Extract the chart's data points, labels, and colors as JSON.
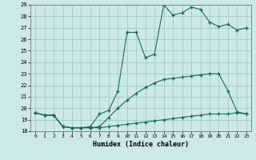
{
  "xlabel": "Humidex (Indice chaleur)",
  "bg_color": "#cce9e4",
  "grid_color": "#9dccc5",
  "line_color": "#1a6b5a",
  "xlim": [
    -0.5,
    23.5
  ],
  "ylim": [
    18,
    29
  ],
  "line1_x": [
    0,
    1,
    2,
    3,
    4,
    5,
    6,
    7,
    8,
    9,
    10,
    11,
    12,
    13,
    14,
    15,
    16,
    17,
    18,
    19,
    20,
    21,
    22,
    23
  ],
  "line1_y": [
    19.6,
    19.4,
    19.4,
    18.4,
    18.3,
    18.3,
    18.3,
    18.3,
    18.4,
    18.5,
    18.6,
    18.7,
    18.8,
    18.9,
    19.0,
    19.1,
    19.2,
    19.3,
    19.4,
    19.5,
    19.5,
    19.5,
    19.6,
    19.5
  ],
  "line2_x": [
    0,
    1,
    2,
    3,
    4,
    5,
    6,
    7,
    8,
    9,
    10,
    11,
    12,
    13,
    14,
    15,
    16,
    17,
    18,
    19,
    20,
    21,
    22,
    23
  ],
  "line2_y": [
    19.6,
    19.4,
    19.4,
    18.4,
    18.3,
    18.3,
    18.3,
    18.4,
    19.2,
    20.0,
    20.7,
    21.3,
    21.8,
    22.2,
    22.5,
    22.6,
    22.7,
    22.8,
    22.9,
    23.0,
    23.0,
    21.5,
    19.7,
    19.5
  ],
  "line3_x": [
    0,
    1,
    2,
    3,
    4,
    5,
    6,
    7,
    8,
    9,
    10,
    11,
    12,
    13,
    14,
    15,
    16,
    17,
    18,
    19,
    20,
    21,
    22,
    23
  ],
  "line3_y": [
    19.6,
    19.4,
    19.4,
    18.4,
    18.3,
    18.3,
    18.4,
    19.5,
    19.8,
    21.5,
    26.6,
    26.6,
    24.4,
    24.7,
    29.0,
    28.1,
    28.3,
    28.8,
    28.6,
    27.5,
    27.1,
    27.3,
    26.8,
    27.0
  ]
}
